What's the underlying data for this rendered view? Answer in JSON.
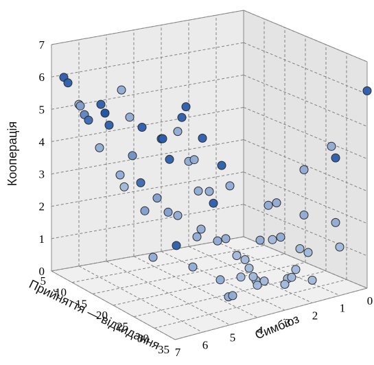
{
  "chart_data": {
    "type": "scatter3d",
    "title": "",
    "axes": {
      "x": {
        "label": "Прийняття — відкидання",
        "ticks": [
          "5",
          "10",
          "15",
          "20",
          "25",
          "30",
          "35"
        ]
      },
      "y": {
        "label": "Симбіоз",
        "ticks": [
          "7",
          "6",
          "5",
          "4",
          "3",
          "2",
          "1",
          "0"
        ]
      },
      "z": {
        "label": "Кооперація",
        "ticks": [
          "0",
          "1",
          "2",
          "3",
          "4",
          "5",
          "6",
          "7"
        ]
      }
    },
    "grid": true,
    "colors": {
      "pane": "#ebebeb",
      "grid": "#808080",
      "point_light": "#c3d2e8",
      "point_dark": "#1a4fa6",
      "edge": "#222222"
    },
    "points": [
      {
        "x": 5,
        "y": 6,
        "z": 5,
        "c": 0.2
      },
      {
        "x": 8,
        "y": 7,
        "z": 6.2,
        "c": 0.9
      },
      {
        "x": 9,
        "y": 7,
        "z": 6.1,
        "c": 0.9
      },
      {
        "x": 10,
        "y": 6,
        "z": 4,
        "c": 0.3
      },
      {
        "x": 12,
        "y": 7,
        "z": 5.6,
        "c": 0.4
      },
      {
        "x": 13,
        "y": 7,
        "z": 5.4,
        "c": 0.6
      },
      {
        "x": 14,
        "y": 7,
        "z": 5.3,
        "c": 0.8
      },
      {
        "x": 15,
        "y": 6,
        "z": 3.5,
        "c": 0.3
      },
      {
        "x": 16,
        "y": 6,
        "z": 3.2,
        "c": 0.2
      },
      {
        "x": 17,
        "y": 7,
        "z": 6,
        "c": 0.9
      },
      {
        "x": 18,
        "y": 7,
        "z": 5.8,
        "c": 1.0
      },
      {
        "x": 18,
        "y": 6,
        "z": 4.3,
        "c": 0.5
      },
      {
        "x": 19,
        "y": 7,
        "z": 5.5,
        "c": 0.9
      },
      {
        "x": 20,
        "y": 5,
        "z": 2.5,
        "c": 0.4
      },
      {
        "x": 20,
        "y": 6,
        "z": 3.6,
        "c": 0.8
      },
      {
        "x": 21,
        "y": 6,
        "z": 2.8,
        "c": 0.4
      },
      {
        "x": 22,
        "y": 7,
        "z": 6.8,
        "c": 0.3
      },
      {
        "x": 22,
        "y": 5,
        "z": 1.6,
        "c": 0.9
      },
      {
        "x": 23,
        "y": 6,
        "z": 1.5,
        "c": 0.3
      },
      {
        "x": 24,
        "y": 7,
        "z": 6.1,
        "c": 0.3
      },
      {
        "x": 24,
        "y": 6,
        "z": 3.4,
        "c": 0.4
      },
      {
        "x": 25,
        "y": 5,
        "z": 4.4,
        "c": 0.3
      },
      {
        "x": 25,
        "y": 6,
        "z": 5.3,
        "c": 0.8
      },
      {
        "x": 26,
        "y": 4,
        "z": 0.6,
        "c": 0.3
      },
      {
        "x": 26,
        "y": 5,
        "z": 1.2,
        "c": 0.3
      },
      {
        "x": 27,
        "y": 7,
        "z": 6,
        "c": 0.9
      },
      {
        "x": 27,
        "y": 6,
        "z": 4.8,
        "c": 0.9
      },
      {
        "x": 27,
        "y": 5,
        "z": 2.2,
        "c": 0.3
      },
      {
        "x": 28,
        "y": 5,
        "z": 2.5,
        "c": 0.3
      },
      {
        "x": 28,
        "y": 4,
        "z": 0.2,
        "c": 0.3
      },
      {
        "x": 29,
        "y": 6,
        "z": 5.8,
        "c": 0.3
      },
      {
        "x": 29,
        "y": 6,
        "z": 3.2,
        "c": 0.3
      },
      {
        "x": 29,
        "y": 4,
        "z": 0.3,
        "c": 0.3
      },
      {
        "x": 30,
        "y": 6,
        "z": 6.3,
        "c": 0.9
      },
      {
        "x": 30,
        "y": 5,
        "z": 3.8,
        "c": 0.3
      },
      {
        "x": 30,
        "y": 4,
        "z": 1.6,
        "c": 0.2
      },
      {
        "x": 31,
        "y": 6,
        "z": 6.7,
        "c": 0.9
      },
      {
        "x": 31,
        "y": 5,
        "z": 3.5,
        "c": 0.9
      },
      {
        "x": 31,
        "y": 4,
        "z": 1.0,
        "c": 0.2
      },
      {
        "x": 32,
        "y": 7,
        "z": 6.0,
        "c": 0.9
      },
      {
        "x": 32,
        "y": 5,
        "z": 2.4,
        "c": 0.3
      },
      {
        "x": 32,
        "y": 4,
        "z": 1.6,
        "c": 0.2
      },
      {
        "x": 33,
        "y": 6,
        "z": 5.2,
        "c": 0.3
      },
      {
        "x": 33,
        "y": 5,
        "z": 4.8,
        "c": 0.9
      },
      {
        "x": 33,
        "y": 4,
        "z": 1.4,
        "c": 0.2
      },
      {
        "x": 34,
        "y": 6,
        "z": 4.3,
        "c": 0.3
      },
      {
        "x": 34,
        "y": 5,
        "z": 2.6,
        "c": 0.3
      },
      {
        "x": 34,
        "y": 4,
        "z": 1.2,
        "c": 0.2
      },
      {
        "x": 35,
        "y": 6,
        "z": 6.0,
        "c": 0.9
      },
      {
        "x": 35,
        "y": 5,
        "z": 4.3,
        "c": 0.3
      },
      {
        "x": 35,
        "y": 4,
        "z": 1.0,
        "c": 0.2
      },
      {
        "x": 35,
        "y": 3,
        "z": 0.8,
        "c": 0.2
      },
      {
        "x": 34,
        "y": 3,
        "z": 2.2,
        "c": 0.3
      },
      {
        "x": 33,
        "y": 3,
        "z": 3.2,
        "c": 0.3
      },
      {
        "x": 32,
        "y": 3,
        "z": 2.0,
        "c": 0.2
      },
      {
        "x": 31,
        "y": 3,
        "z": 3.0,
        "c": 0.3
      },
      {
        "x": 30,
        "y": 3,
        "z": 0.6,
        "c": 0.2
      },
      {
        "x": 29,
        "y": 3,
        "z": 1.8,
        "c": 0.3
      },
      {
        "x": 28,
        "y": 3,
        "z": 0.5,
        "c": 0.2
      },
      {
        "x": 35,
        "y": 2,
        "z": 0.7,
        "c": 0.2
      },
      {
        "x": 34,
        "y": 2,
        "z": 1.5,
        "c": 0.2
      },
      {
        "x": 33,
        "y": 2,
        "z": 2.6,
        "c": 0.3
      },
      {
        "x": 32,
        "y": 2,
        "z": 1.5,
        "c": 0.2
      },
      {
        "x": 31,
        "y": 2,
        "z": 0.8,
        "c": 0.2
      },
      {
        "x": 30,
        "y": 2,
        "z": 0.5,
        "c": 0.2
      },
      {
        "x": 29,
        "y": 2,
        "z": 0.4,
        "c": 0.2
      },
      {
        "x": 35,
        "y": 1,
        "z": 1.5,
        "c": 0.2
      },
      {
        "x": 34,
        "y": 1,
        "z": 4.2,
        "c": 0.9
      },
      {
        "x": 33,
        "y": 1,
        "z": 4.5,
        "c": 0.3
      },
      {
        "x": 35,
        "y": 0,
        "z": 6.1,
        "c": 0.9
      },
      {
        "x": 34,
        "y": 1,
        "z": 2.2,
        "c": 0.3
      },
      {
        "x": 33,
        "y": 2,
        "z": 4.0,
        "c": 0.3
      }
    ]
  }
}
